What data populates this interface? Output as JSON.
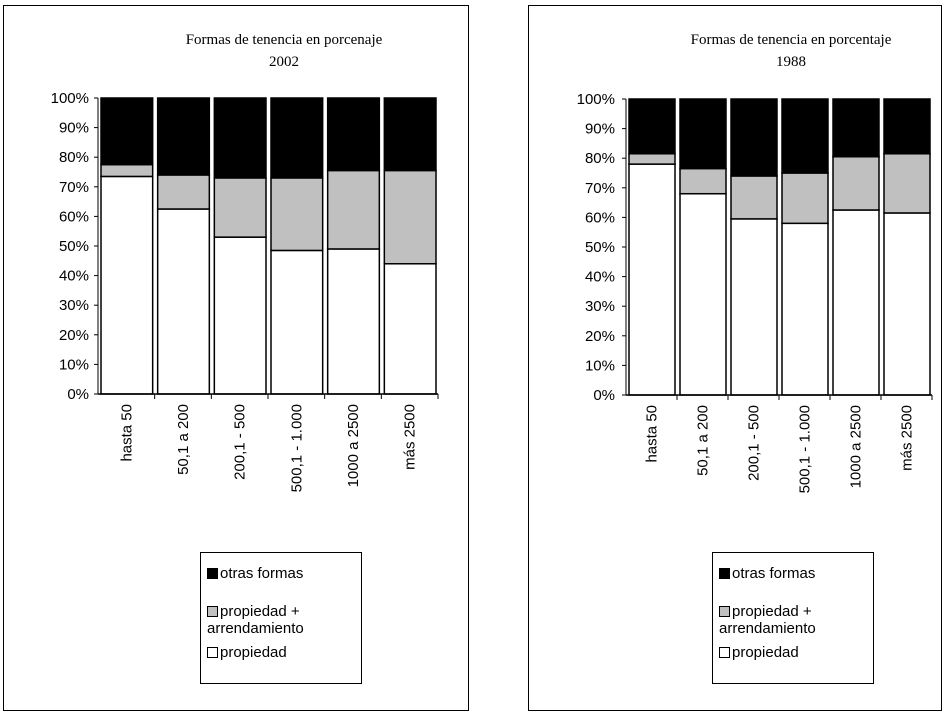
{
  "chart_data": [
    {
      "type": "bar",
      "stacked": true,
      "title": "Formas de tenencia en porcenaje",
      "subtitle": "2002",
      "categories": [
        "hasta 50",
        "50,1 a 200",
        "200,1 - 500",
        "500,1 - 1.000",
        "1000 a 2500",
        "más 2500"
      ],
      "ylim": [
        0,
        100
      ],
      "yticks": [
        "0%",
        "10%",
        "20%",
        "30%",
        "40%",
        "50%",
        "60%",
        "70%",
        "80%",
        "90%",
        "100%"
      ],
      "grid": false,
      "legend_position": "bottom",
      "series": [
        {
          "name": "propiedad",
          "color": "#ffffff",
          "values": [
            73.5,
            62.5,
            53,
            48.5,
            49,
            44
          ]
        },
        {
          "name": "propiedad + arrendamiento",
          "color": "#c0c0c0",
          "values": [
            4,
            11.5,
            20,
            24.5,
            26.5,
            31.5
          ]
        },
        {
          "name": "otras formas",
          "color": "#000000",
          "values": [
            22.5,
            26,
            27,
            27,
            24.5,
            24.5
          ]
        }
      ],
      "legend_order": [
        "otras formas",
        "propiedad + arrendamiento",
        "propiedad"
      ]
    },
    {
      "type": "bar",
      "stacked": true,
      "title": "Formas de tenencia en porcentaje",
      "subtitle": "1988",
      "categories": [
        "hasta 50",
        "50,1 a 200",
        "200,1 - 500",
        "500,1 - 1.000",
        "1000 a 2500",
        "más 2500"
      ],
      "ylim": [
        0,
        100
      ],
      "yticks": [
        "0%",
        "10%",
        "20%",
        "30%",
        "40%",
        "50%",
        "60%",
        "70%",
        "80%",
        "90%",
        "100%"
      ],
      "grid": false,
      "legend_position": "bottom",
      "series": [
        {
          "name": "propiedad",
          "color": "#ffffff",
          "values": [
            78,
            68,
            59.5,
            58,
            62.5,
            61.5
          ]
        },
        {
          "name": "propiedad + arrendamiento",
          "color": "#c0c0c0",
          "values": [
            3.5,
            8.5,
            14.5,
            17,
            18,
            20
          ]
        },
        {
          "name": "otras formas",
          "color": "#000000",
          "values": [
            18.5,
            23.5,
            26,
            25,
            19.5,
            18.5
          ]
        }
      ],
      "legend_order": [
        "otras formas",
        "propiedad + arrendamiento",
        "propiedad"
      ]
    }
  ]
}
